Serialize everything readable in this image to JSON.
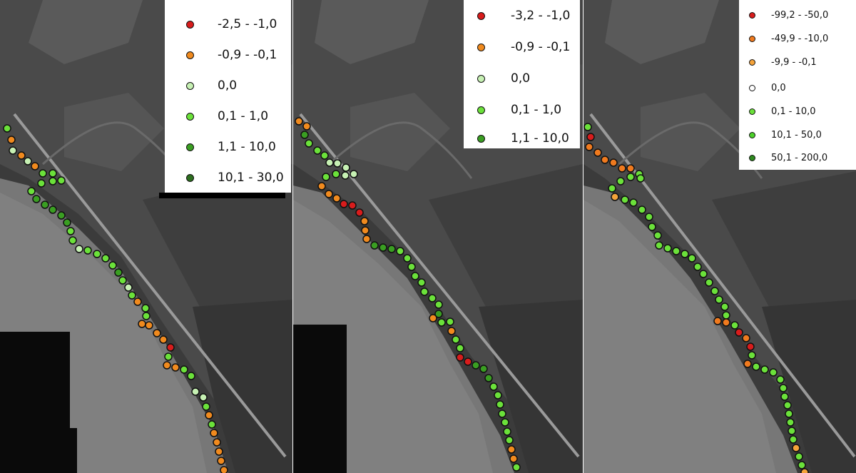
{
  "colors": {
    "red": "#d81c1c",
    "orange": "#f08a1e",
    "pale_green": "#c6f0b3",
    "light_green": "#6be13a",
    "green": "#3fc21f",
    "dark_green": "#2f8a1f"
  },
  "panels": [
    {
      "legend": [
        {
          "label": "-2,5 - -1,0",
          "color": "#d81c1c"
        },
        {
          "label": "-0,9 - -0,1",
          "color": "#f08a1e"
        },
        {
          "label": "0,0",
          "color": "#c6f0b3"
        },
        {
          "label": "0,1 - 1,0",
          "color": "#6be13a"
        },
        {
          "label": "1,1 - 10,0",
          "color": "#3a9e22"
        },
        {
          "label": "10,1 - 30,0",
          "color": "#2d6e1f"
        }
      ]
    },
    {
      "legend": [
        {
          "label": "-3,2 - -1,0",
          "color": "#d81c1c"
        },
        {
          "label": "-0,9 - -0,1",
          "color": "#f08a1e"
        },
        {
          "label": "0,0",
          "color": "#c6f0b3"
        },
        {
          "label": "0,1 - 1,0",
          "color": "#6be13a"
        },
        {
          "label": "1,1 - 10,0",
          "color": "#3a9e22"
        }
      ]
    },
    {
      "legend": [
        {
          "label": "-99,2 - -50,0",
          "color": "#d81c1c"
        },
        {
          "label": "-49,9 - -10,0",
          "color": "#f07a1e"
        },
        {
          "label": "-9,9 - -0,1",
          "color": "#f5a33a"
        },
        {
          "label": "0,0",
          "color": "#ffffff"
        },
        {
          "label": "0,1 - 10,0",
          "color": "#6be13a"
        },
        {
          "label": "10,1 - 50,0",
          "color": "#4cd12a"
        },
        {
          "label": "50,1 - 200,0",
          "color": "#2f8a1f"
        }
      ]
    }
  ]
}
